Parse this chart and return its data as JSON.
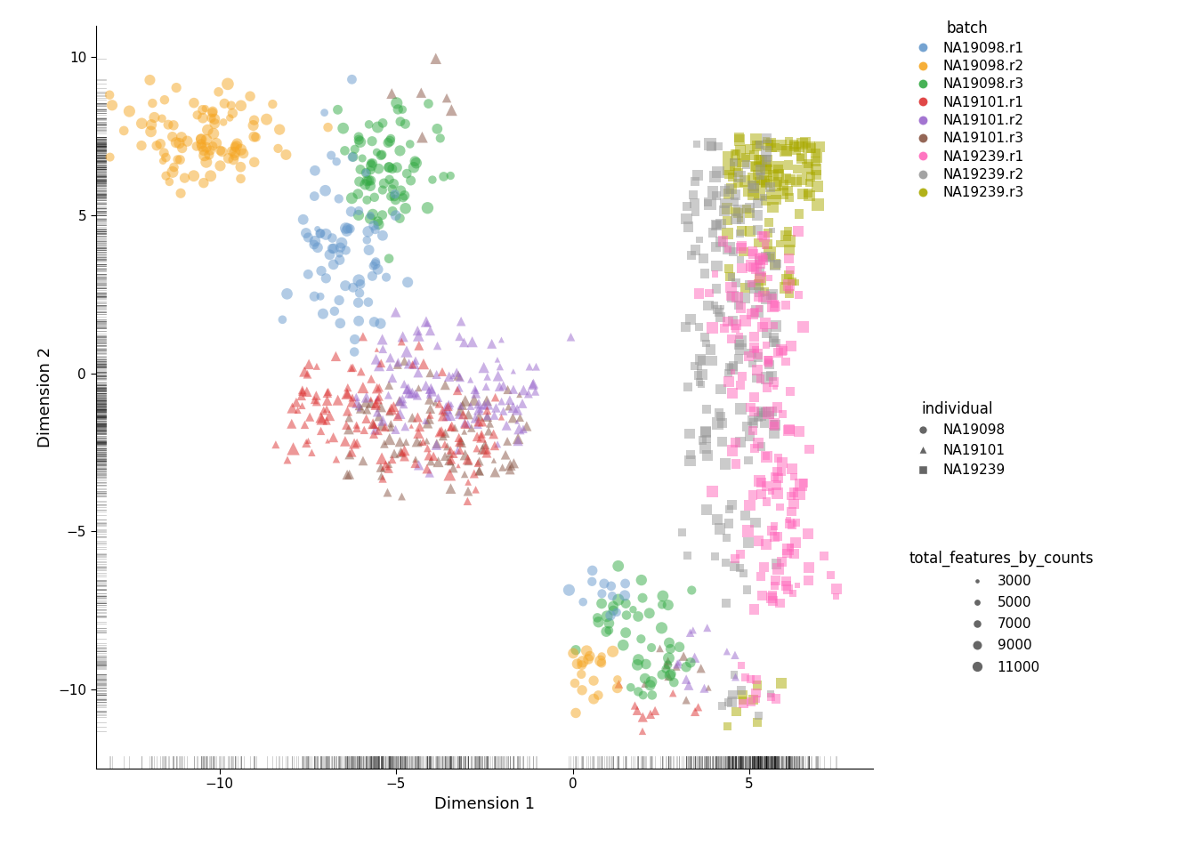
{
  "batch_colors": {
    "NA19098.r1": "#6699CC",
    "NA19098.r2": "#F5A623",
    "NA19098.r3": "#33AA44",
    "NA19101.r1": "#DD3333",
    "NA19101.r2": "#9966CC",
    "NA19101.r3": "#885544",
    "NA19239.r1": "#FF66BB",
    "NA19239.r2": "#999999",
    "NA19239.r3": "#AAAA00"
  },
  "individual_markers": {
    "NA19098": "o",
    "NA19101": "^",
    "NA19239": "s"
  },
  "xlabel": "Dimension 1",
  "ylabel": "Dimension 2",
  "xlim": [
    -13.5,
    8.5
  ],
  "ylim": [
    -12.5,
    11
  ],
  "alpha": 0.5,
  "size_legend_values": [
    3000,
    5000,
    7000,
    9000,
    11000
  ],
  "background_color": "#FFFFFF",
  "legend_fontsize": 11,
  "axis_fontsize": 13,
  "tick_fontsize": 11,
  "base_marker_size": 40
}
